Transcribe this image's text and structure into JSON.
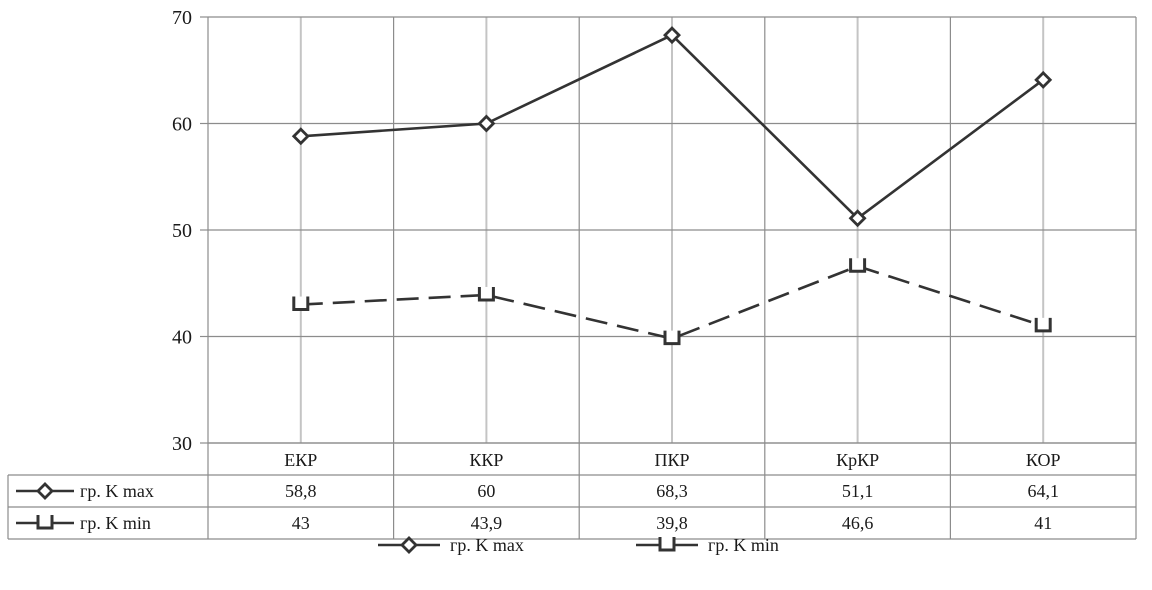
{
  "chart_data": {
    "type": "line",
    "categories": [
      "ЕКР",
      "ККР",
      "ПКР",
      "КрКР",
      "КОР"
    ],
    "ylim": [
      30,
      70
    ],
    "yticks": [
      30,
      40,
      50,
      60,
      70
    ],
    "grid": true,
    "legend_position": "bottom",
    "data_table": true,
    "series": [
      {
        "name": "гр. K max",
        "values": [
          58.8,
          60,
          68.3,
          51.1,
          64.1
        ],
        "labels": [
          "58,8",
          "60",
          "68,3",
          "51,1",
          "64,1"
        ],
        "marker": "diamond",
        "line_style": "solid",
        "color": "#333333"
      },
      {
        "name": "гр. K min",
        "values": [
          43,
          43.9,
          39.8,
          46.6,
          41
        ],
        "labels": [
          "43",
          "43,9",
          "39,8",
          "46,6",
          "41"
        ],
        "marker": "bracket",
        "line_style": "dashed",
        "color": "#333333"
      }
    ]
  }
}
